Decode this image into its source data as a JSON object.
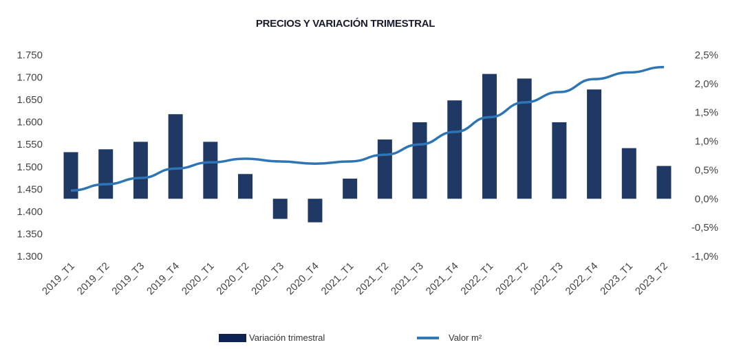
{
  "chart_data": {
    "type": "bar+line",
    "title": "PRECIOS Y VARIACIÓN TRIMESTRAL",
    "categories": [
      "2019_T1",
      "2019_T2",
      "2019_T3",
      "2019_T4",
      "2020_T1",
      "2020_T2",
      "2020_T3",
      "2020_T4",
      "2021_T1",
      "2021_T2",
      "2021_T3",
      "2021_T4",
      "2022_T1",
      "2022_T2",
      "2022_T3",
      "2022_T4",
      "2023_T1",
      "2023_T2"
    ],
    "series": [
      {
        "name": "Variación trimestral",
        "type": "bar",
        "axis": "right",
        "color": "#1f3864",
        "values": [
          0.81,
          0.86,
          0.99,
          1.47,
          0.99,
          0.43,
          -0.35,
          -0.41,
          0.35,
          1.03,
          1.33,
          1.71,
          2.17,
          2.09,
          1.33,
          1.9,
          0.88,
          0.57
        ]
      },
      {
        "name": "Valor m²",
        "type": "line",
        "axis": "left",
        "color": "#2e75b6",
        "values": [
          1447,
          1461,
          1475,
          1496,
          1510,
          1518,
          1512,
          1507,
          1512,
          1527,
          1550,
          1578,
          1611,
          1644,
          1667,
          1696,
          1711,
          1723
        ]
      }
    ],
    "left_axis": {
      "ylim": [
        1300,
        1750
      ],
      "ticks": [
        "1.300",
        "1.350",
        "1.400",
        "1.450",
        "1.500",
        "1.550",
        "1.600",
        "1.650",
        "1.700",
        "1.750"
      ]
    },
    "right_axis": {
      "ylim": [
        -1.0,
        2.5
      ],
      "ticks": [
        "-1,0%",
        "-0,5%",
        "0,0%",
        "0,5%",
        "1,0%",
        "1,5%",
        "2,0%",
        "2,5%"
      ]
    },
    "grid": false,
    "legend_position": "bottom"
  }
}
